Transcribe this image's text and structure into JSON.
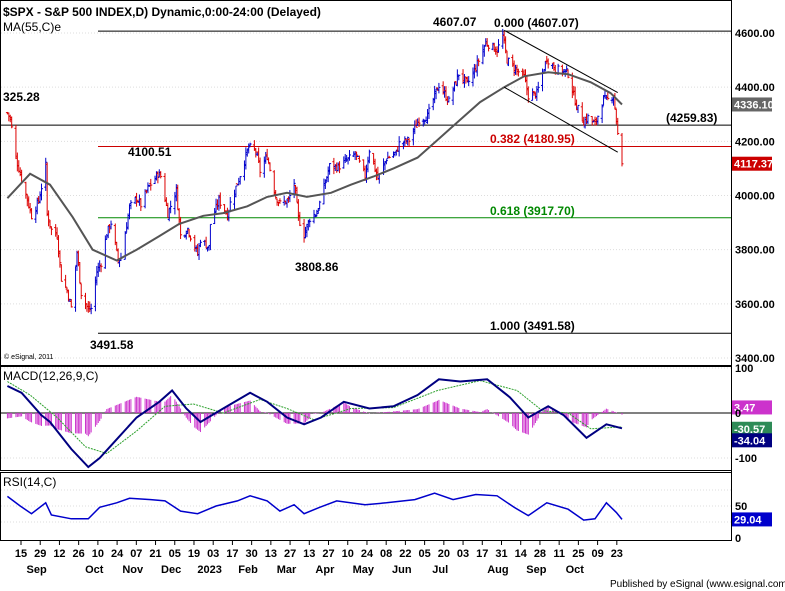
{
  "header": {
    "title": "$SPX - S&P 500 INDEX,D) Dynamic,0:00-24:00 (Delayed)",
    "ma_label": "MA(55,C)e",
    "copyright": "© eSignal, 2011",
    "published": "Published by eSignal (www.esignal.com)"
  },
  "colors": {
    "up_bar": "#0000cc",
    "down_bar": "#dd0000",
    "ma": "#555555",
    "fib_382": "#cc0000",
    "fib_618": "#008800",
    "macd_line": "#000080",
    "macd_signal": "#2ca02c",
    "macd_hist": "#cc33cc",
    "rsi_line": "#0000cc",
    "price_tag": "#cc0000",
    "ma_tag": "#666666",
    "macd_tag_pos": "#2e8b57",
    "macd_tag_neg": "#000080",
    "rsi_tag": "#0000cc"
  },
  "price_panel": {
    "y_ticks": [
      "4600.00",
      "4400.00",
      "4200.00",
      "4000.00",
      "3800.00",
      "3600.00",
      "3400.00"
    ],
    "last_price_tag": "4117.37",
    "ma_tag": "4336.10",
    "labels": {
      "high_left": "325.28",
      "level_4100": "4100.51",
      "low_3808": "3808.86",
      "low_3491": "3491.58",
      "high_4607": "4607.07",
      "fib_000": "0.000 (4607.07)",
      "level_4259": "(4259.83)",
      "fib_382": "0.382 (4180.95)",
      "fib_618": "0.618 (3917.70)",
      "fib_1000": "1.000 (3491.58)"
    }
  },
  "macd_panel": {
    "title": "MACD(12,26,9,C)",
    "y_ticks": [
      "100",
      "0",
      "-100"
    ],
    "tag_signal": "-30.57",
    "tag_macd": "-34.04",
    "tag_hist": "3.47"
  },
  "rsi_panel": {
    "title": "RSI(14,C)",
    "y_ticks": [
      "50",
      "0"
    ],
    "tag_rsi": "29.04"
  },
  "x_axis": {
    "day_labels": [
      "15",
      "29",
      "12",
      "26",
      "10",
      "24",
      "07",
      "21",
      "05",
      "19",
      "03",
      "17",
      "30",
      "13",
      "27",
      "13",
      "27",
      "10",
      "24",
      "08",
      "22",
      "05",
      "20",
      "03",
      "17",
      "31",
      "14",
      "28",
      "11",
      "25",
      "09",
      "23"
    ],
    "month_labels": [
      "Sep",
      "Oct",
      "Nov",
      "Dec",
      "2023",
      "Feb",
      "Mar",
      "Apr",
      "May",
      "Jun",
      "Jul",
      "Aug",
      "Sep",
      "Oct"
    ]
  },
  "chart_data": {
    "type": "candlestick",
    "title": "$SPX - S&P 500 INDEX,D) Dynamic,0:00-24:00 (Delayed)",
    "x_range": [
      "2022-08-15",
      "2023-10-23"
    ],
    "y_range": [
      3400,
      4700
    ],
    "close_series": [
      [
        "2022-08-16",
        4305
      ],
      [
        "2022-08-18",
        4285
      ],
      [
        "2022-08-22",
        4140
      ],
      [
        "2022-08-26",
        4060
      ],
      [
        "2022-08-30",
        3985
      ],
      [
        "2022-09-02",
        3925
      ],
      [
        "2022-09-07",
        3980
      ],
      [
        "2022-09-12",
        4110
      ],
      [
        "2022-09-13",
        3930
      ],
      [
        "2022-09-16",
        3873
      ],
      [
        "2022-09-20",
        3855
      ],
      [
        "2022-09-23",
        3693
      ],
      [
        "2022-09-27",
        3650
      ],
      [
        "2022-09-30",
        3585
      ],
      [
        "2022-10-04",
        3790
      ],
      [
        "2022-10-07",
        3640
      ],
      [
        "2022-10-12",
        3577
      ],
      [
        "2022-10-14",
        3583
      ],
      [
        "2022-10-18",
        3720
      ],
      [
        "2022-10-21",
        3752
      ],
      [
        "2022-10-25",
        3860
      ],
      [
        "2022-10-28",
        3900
      ],
      [
        "2022-11-02",
        3760
      ],
      [
        "2022-11-04",
        3770
      ],
      [
        "2022-11-10",
        3956
      ],
      [
        "2022-11-15",
        3991
      ],
      [
        "2022-11-18",
        3965
      ],
      [
        "2022-11-23",
        4027
      ],
      [
        "2022-11-30",
        4080
      ],
      [
        "2022-12-02",
        4071
      ],
      [
        "2022-12-07",
        3933
      ],
      [
        "2022-12-13",
        4019
      ],
      [
        "2022-12-16",
        3852
      ],
      [
        "2022-12-21",
        3878
      ],
      [
        "2022-12-28",
        3783
      ],
      [
        "2022-12-30",
        3839
      ],
      [
        "2023-01-05",
        3808
      ],
      [
        "2023-01-06",
        3895
      ],
      [
        "2023-01-12",
        3983
      ],
      [
        "2023-01-18",
        3928
      ],
      [
        "2023-01-20",
        3972
      ],
      [
        "2023-01-26",
        4060
      ],
      [
        "2023-02-02",
        4179
      ],
      [
        "2023-02-07",
        4164
      ],
      [
        "2023-02-10",
        4090
      ],
      [
        "2023-02-15",
        4147
      ],
      [
        "2023-02-21",
        3997
      ],
      [
        "2023-02-24",
        3970
      ],
      [
        "2023-03-02",
        3981
      ],
      [
        "2023-03-06",
        4048
      ],
      [
        "2023-03-09",
        3918
      ],
      [
        "2023-03-13",
        3855
      ],
      [
        "2023-03-17",
        3916
      ],
      [
        "2023-03-22",
        3937
      ],
      [
        "2023-03-24",
        3971
      ],
      [
        "2023-03-31",
        4109
      ],
      [
        "2023-04-06",
        4105
      ],
      [
        "2023-04-14",
        4137
      ],
      [
        "2023-04-18",
        4154
      ],
      [
        "2023-04-25",
        4071
      ],
      [
        "2023-04-28",
        4169
      ],
      [
        "2023-05-04",
        4061
      ],
      [
        "2023-05-10",
        4137
      ],
      [
        "2023-05-17",
        4158
      ],
      [
        "2023-05-19",
        4191
      ],
      [
        "2023-05-26",
        4205
      ],
      [
        "2023-06-02",
        4282
      ],
      [
        "2023-06-08",
        4293
      ],
      [
        "2023-06-13",
        4369
      ],
      [
        "2023-06-16",
        4409
      ],
      [
        "2023-06-23",
        4348
      ],
      [
        "2023-06-30",
        4450
      ],
      [
        "2023-07-06",
        4411
      ],
      [
        "2023-07-12",
        4472
      ],
      [
        "2023-07-19",
        4565
      ],
      [
        "2023-07-27",
        4537
      ],
      [
        "2023-07-31",
        4589
      ],
      [
        "2023-08-03",
        4501
      ],
      [
        "2023-08-09",
        4467
      ],
      [
        "2023-08-15",
        4437
      ],
      [
        "2023-08-18",
        4369
      ],
      [
        "2023-08-24",
        4376
      ],
      [
        "2023-08-31",
        4507
      ],
      [
        "2023-09-06",
        4465
      ],
      [
        "2023-09-12",
        4461
      ],
      [
        "2023-09-15",
        4450
      ],
      [
        "2023-09-21",
        4330
      ],
      [
        "2023-09-26",
        4273
      ],
      [
        "2023-09-29",
        4288
      ],
      [
        "2023-10-04",
        4263
      ],
      [
        "2023-10-10",
        4358
      ],
      [
        "2023-10-12",
        4349
      ],
      [
        "2023-10-17",
        4373
      ],
      [
        "2023-10-19",
        4278
      ],
      [
        "2023-10-20",
        4224
      ],
      [
        "2023-10-23",
        4117
      ]
    ],
    "ma55_series": [
      [
        "2022-08-16",
        3990
      ],
      [
        "2022-09-01",
        4080
      ],
      [
        "2022-09-15",
        4040
      ],
      [
        "2022-10-01",
        3920
      ],
      [
        "2022-10-15",
        3800
      ],
      [
        "2022-11-01",
        3760
      ],
      [
        "2022-11-15",
        3800
      ],
      [
        "2022-12-01",
        3850
      ],
      [
        "2022-12-15",
        3895
      ],
      [
        "2023-01-01",
        3925
      ],
      [
        "2023-01-15",
        3935
      ],
      [
        "2023-02-01",
        3960
      ],
      [
        "2023-02-15",
        3995
      ],
      [
        "2023-03-01",
        4010
      ],
      [
        "2023-03-15",
        3995
      ],
      [
        "2023-04-01",
        4010
      ],
      [
        "2023-04-15",
        4040
      ],
      [
        "2023-05-01",
        4070
      ],
      [
        "2023-05-15",
        4100
      ],
      [
        "2023-06-01",
        4140
      ],
      [
        "2023-06-15",
        4205
      ],
      [
        "2023-07-01",
        4280
      ],
      [
        "2023-07-15",
        4345
      ],
      [
        "2023-08-01",
        4400
      ],
      [
        "2023-08-15",
        4440
      ],
      [
        "2023-09-01",
        4455
      ],
      [
        "2023-09-15",
        4448
      ],
      [
        "2023-10-01",
        4418
      ],
      [
        "2023-10-15",
        4378
      ],
      [
        "2023-10-23",
        4336
      ]
    ],
    "horizontal_levels": [
      {
        "label": "0.000 (4607.07)",
        "value": 4607.07
      },
      {
        "label": "(4259.83)",
        "value": 4259.83
      },
      {
        "label": "0.382 (4180.95)",
        "value": 4180.95
      },
      {
        "label": "0.618 (3917.70)",
        "value": 3917.7
      },
      {
        "label": "1.000 (3491.58)",
        "value": 3491.58
      }
    ],
    "trend_channel": {
      "upper": [
        [
          "2023-08-01",
          4610
        ],
        [
          "2023-10-20",
          4380
        ]
      ],
      "lower": [
        [
          "2023-08-01",
          4400
        ],
        [
          "2023-10-20",
          4160
        ]
      ]
    },
    "macd": {
      "title": "MACD(12,26,9,C)",
      "y_range": [
        -140,
        140
      ],
      "macd_series": [
        [
          "2022-08-16",
          60
        ],
        [
          "2022-08-26",
          45
        ],
        [
          "2022-09-09",
          -5
        ],
        [
          "2022-09-15",
          -20
        ],
        [
          "2022-09-30",
          -80
        ],
        [
          "2022-10-12",
          -120
        ],
        [
          "2022-10-20",
          -100
        ],
        [
          "2022-11-02",
          -55
        ],
        [
          "2022-11-15",
          -10
        ],
        [
          "2022-12-01",
          25
        ],
        [
          "2022-12-10",
          50
        ],
        [
          "2022-12-20",
          10
        ],
        [
          "2022-12-30",
          -20
        ],
        [
          "2023-01-15",
          10
        ],
        [
          "2023-02-03",
          45
        ],
        [
          "2023-02-15",
          25
        ],
        [
          "2023-03-01",
          -10
        ],
        [
          "2023-03-13",
          -25
        ],
        [
          "2023-03-25",
          -10
        ],
        [
          "2023-04-10",
          25
        ],
        [
          "2023-04-28",
          10
        ],
        [
          "2023-05-15",
          15
        ],
        [
          "2023-06-01",
          40
        ],
        [
          "2023-06-16",
          75
        ],
        [
          "2023-07-01",
          70
        ],
        [
          "2023-07-20",
          75
        ],
        [
          "2023-08-05",
          35
        ],
        [
          "2023-08-18",
          -10
        ],
        [
          "2023-09-01",
          15
        ],
        [
          "2023-09-12",
          -5
        ],
        [
          "2023-09-28",
          -55
        ],
        [
          "2023-10-12",
          -25
        ],
        [
          "2023-10-23",
          -34
        ]
      ],
      "signal_series": [
        [
          "2022-08-16",
          70
        ],
        [
          "2022-09-01",
          40
        ],
        [
          "2022-09-20",
          -10
        ],
        [
          "2022-10-10",
          -75
        ],
        [
          "2022-10-25",
          -90
        ],
        [
          "2022-11-15",
          -40
        ],
        [
          "2022-12-05",
          15
        ],
        [
          "2022-12-25",
          20
        ],
        [
          "2023-01-15",
          0
        ],
        [
          "2023-02-10",
          30
        ],
        [
          "2023-03-01",
          10
        ],
        [
          "2023-03-20",
          -15
        ],
        [
          "2023-04-15",
          10
        ],
        [
          "2023-05-15",
          12
        ],
        [
          "2023-06-15",
          50
        ],
        [
          "2023-07-15",
          72
        ],
        [
          "2023-08-10",
          50
        ],
        [
          "2023-08-28",
          5
        ],
        [
          "2023-09-15",
          0
        ],
        [
          "2023-10-01",
          -35
        ],
        [
          "2023-10-23",
          -31
        ]
      ],
      "last_values": {
        "signal": -30.57,
        "macd": -34.04,
        "histogram": 3.47
      }
    },
    "rsi": {
      "title": "RSI(14,C)",
      "y_range": [
        0,
        100
      ],
      "series": [
        [
          "2022-08-16",
          65
        ],
        [
          "2022-08-25",
          50
        ],
        [
          "2022-09-02",
          38
        ],
        [
          "2022-09-12",
          55
        ],
        [
          "2022-09-16",
          36
        ],
        [
          "2022-09-30",
          30
        ],
        [
          "2022-10-12",
          30
        ],
        [
          "2022-10-20",
          48
        ],
        [
          "2022-11-01",
          55
        ],
        [
          "2022-11-10",
          62
        ],
        [
          "2022-11-25",
          60
        ],
        [
          "2022-12-05",
          58
        ],
        [
          "2022-12-16",
          42
        ],
        [
          "2022-12-28",
          38
        ],
        [
          "2023-01-10",
          50
        ],
        [
          "2023-01-25",
          58
        ],
        [
          "2023-02-03",
          66
        ],
        [
          "2023-02-15",
          58
        ],
        [
          "2023-02-24",
          42
        ],
        [
          "2023-03-06",
          52
        ],
        [
          "2023-03-13",
          38
        ],
        [
          "2023-03-24",
          48
        ],
        [
          "2023-04-05",
          58
        ],
        [
          "2023-04-25",
          52
        ],
        [
          "2023-05-10",
          55
        ],
        [
          "2023-05-30",
          60
        ],
        [
          "2023-06-13",
          70
        ],
        [
          "2023-06-26",
          60
        ],
        [
          "2023-07-12",
          68
        ],
        [
          "2023-07-27",
          66
        ],
        [
          "2023-08-08",
          48
        ],
        [
          "2023-08-18",
          35
        ],
        [
          "2023-08-31",
          55
        ],
        [
          "2023-09-15",
          45
        ],
        [
          "2023-09-26",
          28
        ],
        [
          "2023-10-04",
          30
        ],
        [
          "2023-10-12",
          55
        ],
        [
          "2023-10-19",
          40
        ],
        [
          "2023-10-23",
          29.04
        ]
      ]
    },
    "grid": true,
    "legend": "none"
  }
}
